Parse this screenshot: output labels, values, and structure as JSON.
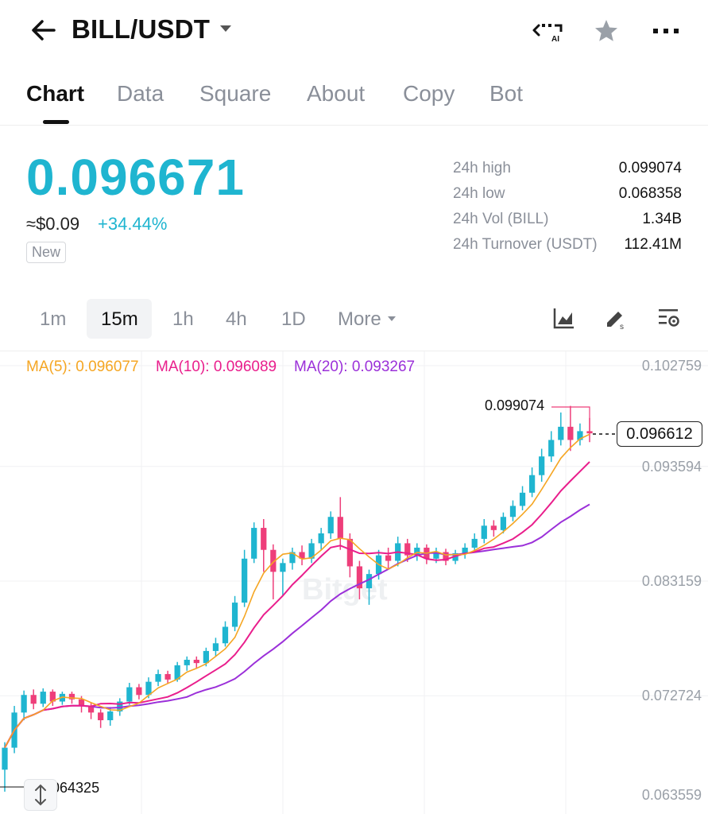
{
  "header": {
    "pair": "BILL/USDT",
    "ai_label": "AI",
    "icons": [
      "back-arrow-icon",
      "dropdown-caret-icon",
      "ai-icon",
      "star-icon",
      "more-dots-icon"
    ]
  },
  "tabs": [
    {
      "label": "Chart",
      "active": true
    },
    {
      "label": "Data"
    },
    {
      "label": "Square"
    },
    {
      "label": "About"
    },
    {
      "label": "Copy"
    },
    {
      "label": "Bot"
    }
  ],
  "price": {
    "last": "0.096671",
    "usd": "≈$0.09",
    "change": "+34.44%",
    "badge": "New",
    "color": "#1fb5d0"
  },
  "stats": [
    {
      "label": "24h high",
      "value": "0.099074"
    },
    {
      "label": "24h low",
      "value": "0.068358"
    },
    {
      "label": "24h Vol (BILL)",
      "value": "1.34B"
    },
    {
      "label": "24h Turnover (USDT)",
      "value": "112.41M"
    }
  ],
  "intervals": {
    "items": [
      "1m",
      "15m",
      "1h",
      "4h",
      "1D",
      "More"
    ],
    "selected": "15m",
    "tool_icons": [
      "chart-style-icon",
      "draw-tool-icon",
      "chart-settings-icon"
    ]
  },
  "ma": {
    "ma5": "MA(5): 0.096077",
    "ma10": "MA(10): 0.096089",
    "ma20": "MA(20): 0.093267",
    "colors": {
      "ma5": "#f5a623",
      "ma10": "#e91e8c",
      "ma20": "#9b30d9"
    }
  },
  "chart": {
    "current_price": "0.096612",
    "high_label": "0.099074",
    "low_label": "0.064325",
    "watermark": "Bitget",
    "y_ticks": [
      "0.102759",
      "0.093594",
      "0.083159",
      "0.072724",
      "0.063559"
    ],
    "up_color": "#1fb5d0",
    "down_color": "#ee3e7a"
  },
  "chart_data": {
    "type": "candlestick",
    "ylim": [
      0.063559,
      0.102759
    ],
    "candles": [
      [
        0.066,
        0.068,
        0.064,
        0.0685
      ],
      [
        0.068,
        0.0712,
        0.0675,
        0.0718
      ],
      [
        0.0712,
        0.0728,
        0.0705,
        0.0732
      ],
      [
        0.0728,
        0.072,
        0.0715,
        0.0733
      ],
      [
        0.072,
        0.0731,
        0.0717,
        0.0734
      ],
      [
        0.0731,
        0.0722,
        0.0718,
        0.0733
      ],
      [
        0.0722,
        0.0729,
        0.0719,
        0.0731
      ],
      [
        0.0729,
        0.0724,
        0.072,
        0.0731
      ],
      [
        0.0724,
        0.0718,
        0.0712,
        0.0727
      ],
      [
        0.0718,
        0.0712,
        0.0706,
        0.0721
      ],
      [
        0.0712,
        0.0705,
        0.0698,
        0.0715
      ],
      [
        0.0705,
        0.0713,
        0.07,
        0.0717
      ],
      [
        0.0713,
        0.0722,
        0.0709,
        0.0725
      ],
      [
        0.0722,
        0.0735,
        0.0719,
        0.0739
      ],
      [
        0.0735,
        0.0728,
        0.0724,
        0.0738
      ],
      [
        0.0728,
        0.074,
        0.0725,
        0.0744
      ],
      [
        0.074,
        0.0747,
        0.0736,
        0.0751
      ],
      [
        0.0747,
        0.0742,
        0.0738,
        0.075
      ],
      [
        0.0742,
        0.0755,
        0.074,
        0.0758
      ],
      [
        0.0755,
        0.076,
        0.075,
        0.0763
      ],
      [
        0.076,
        0.0757,
        0.0752,
        0.0763
      ],
      [
        0.0757,
        0.0768,
        0.0754,
        0.0771
      ],
      [
        0.0768,
        0.0775,
        0.0763,
        0.078
      ],
      [
        0.0775,
        0.079,
        0.0772,
        0.0795
      ],
      [
        0.079,
        0.0812,
        0.0786,
        0.0818
      ],
      [
        0.0812,
        0.0852,
        0.0808,
        0.086
      ],
      [
        0.0852,
        0.088,
        0.0848,
        0.0885
      ],
      [
        0.088,
        0.086,
        0.084,
        0.0888
      ],
      [
        0.086,
        0.084,
        0.0815,
        0.0865
      ],
      [
        0.084,
        0.0848,
        0.0818,
        0.0852
      ],
      [
        0.0848,
        0.0858,
        0.0842,
        0.0862
      ],
      [
        0.0858,
        0.0852,
        0.0846,
        0.0864
      ],
      [
        0.0852,
        0.0866,
        0.0848,
        0.087
      ],
      [
        0.0866,
        0.0875,
        0.086,
        0.088
      ],
      [
        0.0875,
        0.089,
        0.087,
        0.0895
      ],
      [
        0.089,
        0.087,
        0.086,
        0.0908
      ],
      [
        0.087,
        0.0845,
        0.0835,
        0.0875
      ],
      [
        0.0845,
        0.0825,
        0.0815,
        0.085
      ],
      [
        0.0825,
        0.0838,
        0.081,
        0.0842
      ],
      [
        0.0838,
        0.0855,
        0.0833,
        0.086
      ],
      [
        0.0855,
        0.085,
        0.0843,
        0.0862
      ],
      [
        0.085,
        0.0866,
        0.0845,
        0.0872
      ],
      [
        0.0866,
        0.0855,
        0.0849,
        0.087
      ],
      [
        0.0855,
        0.0862,
        0.085,
        0.0866
      ],
      [
        0.0862,
        0.0852,
        0.0847,
        0.0865
      ],
      [
        0.0852,
        0.0858,
        0.0848,
        0.0862
      ],
      [
        0.0858,
        0.085,
        0.0846,
        0.0861
      ],
      [
        0.085,
        0.0857,
        0.0847,
        0.086
      ],
      [
        0.0857,
        0.0862,
        0.0852,
        0.0866
      ],
      [
        0.0862,
        0.087,
        0.0858,
        0.0875
      ],
      [
        0.087,
        0.0882,
        0.0866,
        0.0888
      ],
      [
        0.0882,
        0.0878,
        0.0872,
        0.0887
      ],
      [
        0.0878,
        0.089,
        0.0875,
        0.0894
      ],
      [
        0.089,
        0.09,
        0.0886,
        0.0905
      ],
      [
        0.09,
        0.0912,
        0.0896,
        0.0918
      ],
      [
        0.0912,
        0.0928,
        0.0908,
        0.0935
      ],
      [
        0.0928,
        0.0945,
        0.0922,
        0.0952
      ],
      [
        0.0945,
        0.096,
        0.094,
        0.0968
      ],
      [
        0.096,
        0.0972,
        0.0955,
        0.0985
      ],
      [
        0.0972,
        0.096,
        0.095,
        0.0991
      ],
      [
        0.096,
        0.0968,
        0.0955,
        0.0975
      ],
      [
        0.0968,
        0.0966,
        0.0958,
        0.098
      ]
    ]
  }
}
